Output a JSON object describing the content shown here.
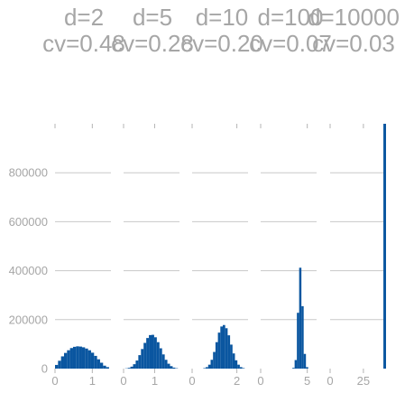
{
  "chart_data": {
    "type": "bar",
    "layout": "row of histogram panels with shared y axis",
    "grid": "horizontal",
    "bar_color": "#0a56a0",
    "text_color": "#a6a6a6",
    "y_ticks": [
      0,
      200000,
      400000,
      600000,
      800000
    ],
    "y_tick_labels": [
      "0",
      "200000",
      "400000",
      "600000",
      "800000"
    ],
    "ylim": [
      0,
      1000000
    ],
    "panels": [
      {
        "title_lines": [
          "d=2",
          "cv=0.48"
        ],
        "xlim": [
          0,
          1.5
        ],
        "x_ticks": [
          0,
          1
        ],
        "x_tick_labels": [
          "0",
          "1"
        ],
        "bin_edges_range": [
          0,
          1.45
        ],
        "counts": [
          15000,
          32000,
          50000,
          64000,
          75000,
          84000,
          89000,
          91000,
          90000,
          87000,
          82000,
          75000,
          65000,
          52000,
          38000,
          24000,
          12000,
          6000
        ]
      },
      {
        "title_lines": [
          "d=5",
          "cv=0.28"
        ],
        "xlim": [
          0,
          1.8
        ],
        "x_ticks": [
          0,
          1
        ],
        "x_tick_labels": [
          "0",
          "1"
        ],
        "bin_edges_range": [
          0.05,
          1.75
        ],
        "counts": [
          1000,
          3000,
          8000,
          18000,
          33000,
          55000,
          80000,
          105000,
          125000,
          137000,
          138000,
          128000,
          108000,
          83000,
          58000,
          36000,
          20000,
          10000,
          4000,
          1500
        ]
      },
      {
        "title_lines": [
          "d=10",
          "cv=0.20"
        ],
        "xlim": [
          0,
          2.5
        ],
        "x_ticks": [
          0,
          2
        ],
        "x_tick_labels": [
          "0",
          "2"
        ],
        "bin_edges_range": [
          0.5,
          2.35
        ],
        "counts": [
          2000,
          6000,
          16000,
          36000,
          68000,
          108000,
          147000,
          172000,
          178000,
          165000,
          136000,
          98000,
          62000,
          34000,
          16000,
          6000,
          2000
        ]
      },
      {
        "title_lines": [
          "d=100",
          "cv=0.07"
        ],
        "xlim": [
          0,
          6
        ],
        "x_ticks": [
          0,
          5
        ],
        "x_tick_labels": [
          "0",
          "5"
        ],
        "bin_edges_range": [
          3.4,
          5.1
        ],
        "counts": [
          3000,
          35000,
          228000,
          412000,
          255000,
          60000,
          6000
        ]
      },
      {
        "title_lines": [
          "d=10000",
          "cv=0.03"
        ],
        "xlim": [
          0,
          42
        ],
        "x_ticks": [
          0,
          25
        ],
        "x_tick_labels": [
          "0",
          "25"
        ],
        "bin_edges_range": [
          40,
          42
        ],
        "counts": [
          1000000
        ]
      }
    ]
  }
}
